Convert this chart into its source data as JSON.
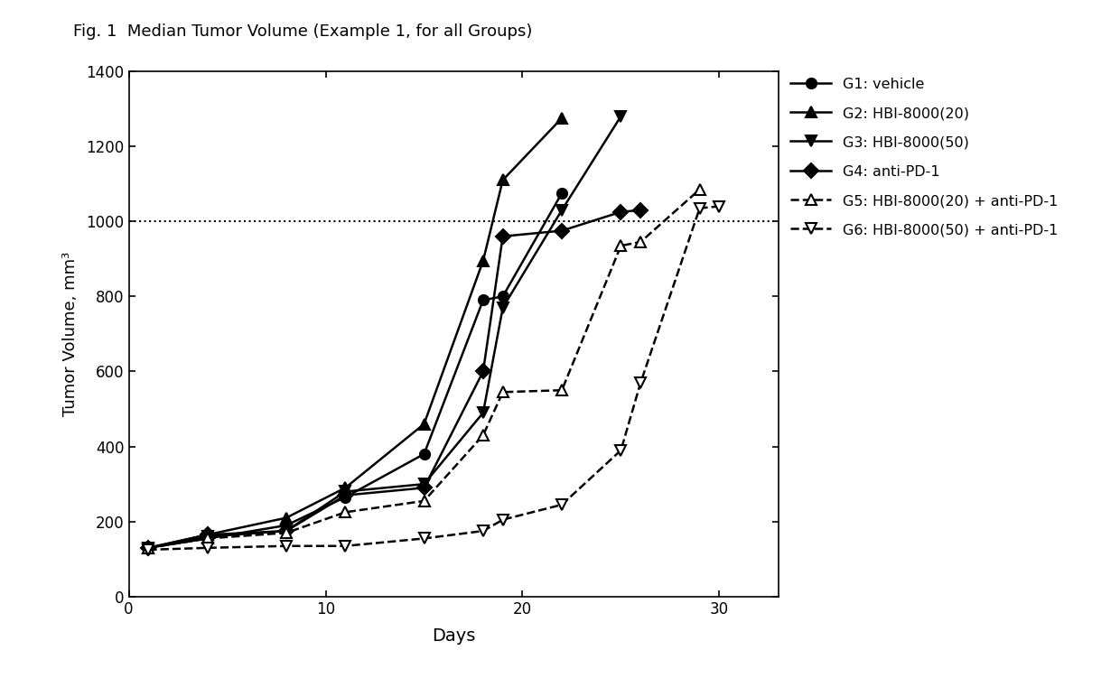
{
  "title": "Fig. 1  Median Tumor Volume (Example 1, for all Groups)",
  "xlabel": "Days",
  "ylabel": "Tumor Volume, mm³",
  "xlim": [
    0,
    33
  ],
  "ylim": [
    0,
    1400
  ],
  "yticks": [
    0,
    200,
    400,
    600,
    800,
    1000,
    1200,
    1400
  ],
  "xticks": [
    0,
    10,
    20,
    30
  ],
  "hline_y": 1000,
  "groups": {
    "G1": {
      "label": "G1: vehicle",
      "x": [
        1,
        4,
        8,
        11,
        15,
        18,
        19,
        22
      ],
      "y": [
        130,
        155,
        190,
        265,
        380,
        790,
        800,
        1075
      ],
      "marker": "o",
      "filled": true,
      "dashed": false
    },
    "G2": {
      "label": "G2: HBI-8000(20)",
      "x": [
        1,
        4,
        8,
        11,
        15,
        18,
        19,
        22
      ],
      "y": [
        130,
        165,
        210,
        290,
        460,
        895,
        1110,
        1275
      ],
      "marker": "^",
      "filled": true,
      "dashed": false
    },
    "G3": {
      "label": "G3: HBI-8000(50)",
      "x": [
        1,
        4,
        8,
        11,
        15,
        18,
        19,
        22,
        25
      ],
      "y": [
        130,
        160,
        175,
        280,
        300,
        490,
        770,
        1030,
        1280
      ],
      "marker": "v",
      "filled": true,
      "dashed": false
    },
    "G4": {
      "label": "G4: anti-PD-1",
      "x": [
        1,
        4,
        8,
        11,
        15,
        18,
        19,
        22,
        25,
        26
      ],
      "y": [
        130,
        165,
        175,
        270,
        290,
        600,
        960,
        975,
        1025,
        1030
      ],
      "marker": "D",
      "filled": true,
      "dashed": false
    },
    "G5": {
      "label": "G5: HBI-8000(20) + anti-PD-1",
      "x": [
        1,
        4,
        8,
        11,
        15,
        18,
        19,
        22,
        25,
        26,
        29
      ],
      "y": [
        130,
        155,
        170,
        225,
        255,
        430,
        545,
        550,
        935,
        945,
        1085
      ],
      "marker": "^",
      "filled": false,
      "dashed": true
    },
    "G6": {
      "label": "G6: HBI-8000(50) + anti-PD-1",
      "x": [
        1,
        4,
        8,
        11,
        15,
        18,
        19,
        22,
        25,
        26,
        29,
        30
      ],
      "y": [
        125,
        130,
        135,
        135,
        155,
        175,
        205,
        245,
        390,
        570,
        1035,
        1040
      ],
      "marker": "v",
      "filled": false,
      "dashed": true
    }
  },
  "line_color": "#000000",
  "background_color": "#ffffff",
  "figsize": [
    12.4,
    7.51
  ],
  "dpi": 100
}
